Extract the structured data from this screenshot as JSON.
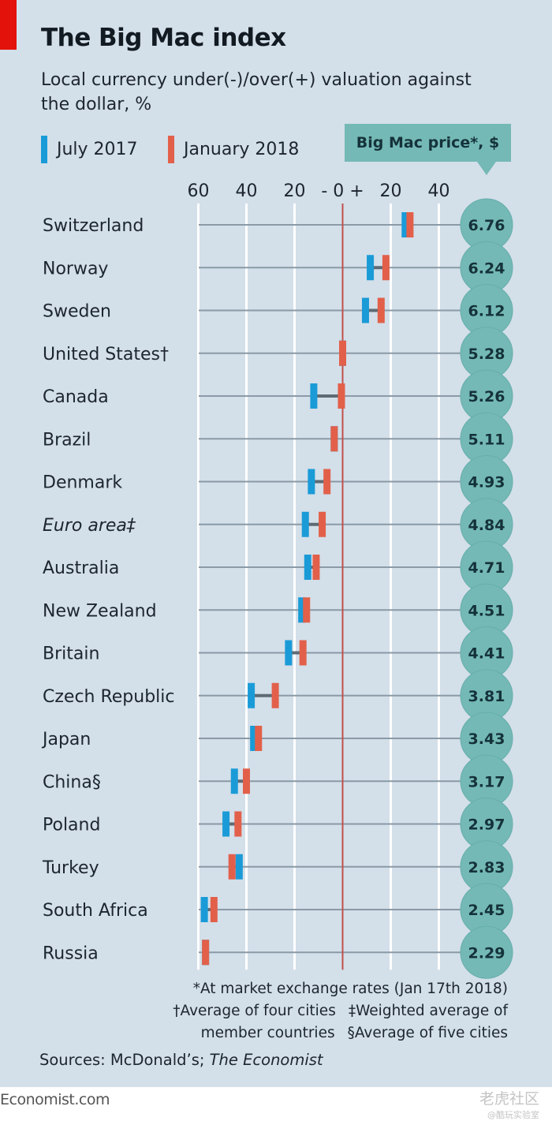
{
  "header": {
    "title": "The Big Mac index",
    "subtitle": "Local currency under(-)/over(+) valuation against the dollar, %"
  },
  "legend": {
    "july_2017": "July 2017",
    "january_2018": "January 2018",
    "price_box": "Big Mac price*, $"
  },
  "colors": {
    "july_2017": "#1a9bd7",
    "january_2018": "#e2604a",
    "price_bubble": "#74b9b6",
    "zero_line": "#c0504d",
    "background": "#d3dfe9",
    "brand_red": "#e3120b"
  },
  "chart_data": {
    "type": "dot-range",
    "title": "The Big Mac index",
    "subtitle": "Local currency under(-)/over(+) valuation against the dollar, %",
    "xlabel": "",
    "ylabel": "",
    "xlim": [
      -60,
      45
    ],
    "x_ticks": [
      {
        "value": -60,
        "label": "60"
      },
      {
        "value": -40,
        "label": "40"
      },
      {
        "value": -20,
        "label": "20"
      },
      {
        "value": 0,
        "label": "- 0 +"
      },
      {
        "value": 20,
        "label": "20"
      },
      {
        "value": 40,
        "label": "40"
      }
    ],
    "grid": true,
    "legend_position": "top-left",
    "series": [
      {
        "name": "July 2017",
        "values": [
          26,
          11.5,
          9.5,
          0,
          -12,
          -3.5,
          -13,
          -15.5,
          -14.5,
          -17,
          -22.5,
          -38,
          -37,
          -45,
          -48.5,
          -43,
          -57.5,
          -57
        ]
      },
      {
        "name": "January 2018",
        "values": [
          28,
          18,
          16,
          0,
          -0.5,
          -3.5,
          -6.5,
          -8.5,
          -11,
          -15,
          -16.5,
          -28,
          -35,
          -40,
          -43.5,
          -46,
          -53.5,
          -57
        ]
      }
    ],
    "categories": [
      "Switzerland",
      "Norway",
      "Sweden",
      "United States†",
      "Canada",
      "Brazil",
      "Denmark",
      "Euro area‡",
      "Australia",
      "New Zealand",
      "Britain",
      "Czech Republic",
      "Japan",
      "China§",
      "Poland",
      "Turkey",
      "South Africa",
      "Russia"
    ],
    "italic_categories": [
      "Euro area‡"
    ],
    "big_mac_price_usd": [
      "6.76",
      "6.24",
      "6.12",
      "5.28",
      "5.26",
      "5.11",
      "4.93",
      "4.84",
      "4.71",
      "4.51",
      "4.41",
      "3.81",
      "3.43",
      "3.17",
      "2.97",
      "2.83",
      "2.45",
      "2.29"
    ]
  },
  "footnotes": {
    "line1": "*At market exchange rates (Jan 17th 2018)",
    "line2a": "†Average of four cities",
    "line2b": "‡Weighted average of",
    "line3a": "member countries",
    "line3b": "§Average of five cities"
  },
  "sources": {
    "prefix": "Sources: McDonald’s; ",
    "italic": "The Economist"
  },
  "brand": "Economist.com",
  "watermark": {
    "line1": "老虎社区",
    "line2": "@酷玩实验室"
  }
}
